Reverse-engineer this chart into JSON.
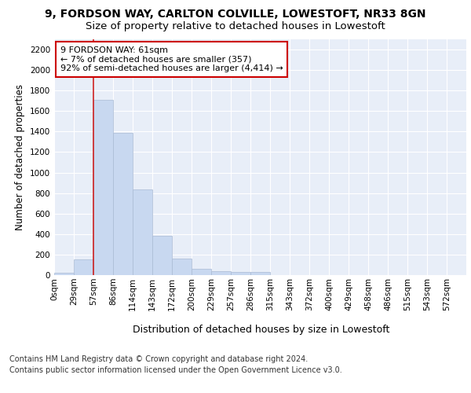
{
  "title1": "9, FORDSON WAY, CARLTON COLVILLE, LOWESTOFT, NR33 8GN",
  "title2": "Size of property relative to detached houses in Lowestoft",
  "xlabel": "Distribution of detached houses by size in Lowestoft",
  "ylabel": "Number of detached properties",
  "footer1": "Contains HM Land Registry data © Crown copyright and database right 2024.",
  "footer2": "Contains public sector information licensed under the Open Government Licence v3.0.",
  "bin_labels": [
    "0sqm",
    "29sqm",
    "57sqm",
    "86sqm",
    "114sqm",
    "143sqm",
    "172sqm",
    "200sqm",
    "229sqm",
    "257sqm",
    "286sqm",
    "315sqm",
    "343sqm",
    "372sqm",
    "400sqm",
    "429sqm",
    "458sqm",
    "486sqm",
    "515sqm",
    "543sqm",
    "572sqm"
  ],
  "bar_values": [
    20,
    155,
    1710,
    1390,
    835,
    385,
    160,
    65,
    35,
    28,
    28,
    0,
    0,
    0,
    0,
    0,
    0,
    0,
    0,
    0,
    0
  ],
  "bar_color": "#c8d8f0",
  "bar_edge_color": "#aabbd4",
  "vline_bin": 2,
  "annotation_text": "9 FORDSON WAY: 61sqm\n← 7% of detached houses are smaller (357)\n92% of semi-detached houses are larger (4,414) →",
  "annotation_box_facecolor": "#ffffff",
  "annotation_box_edgecolor": "#cc0000",
  "ylim": [
    0,
    2300
  ],
  "yticks": [
    0,
    200,
    400,
    600,
    800,
    1000,
    1200,
    1400,
    1600,
    1800,
    2000,
    2200
  ],
  "plot_bg_color": "#e8eef8",
  "grid_color": "#ffffff",
  "vline_color": "#cc2222",
  "title1_fontsize": 10,
  "title2_fontsize": 9.5,
  "xlabel_fontsize": 9,
  "ylabel_fontsize": 8.5,
  "tick_fontsize": 7.5,
  "annotation_fontsize": 8,
  "footer_fontsize": 7
}
